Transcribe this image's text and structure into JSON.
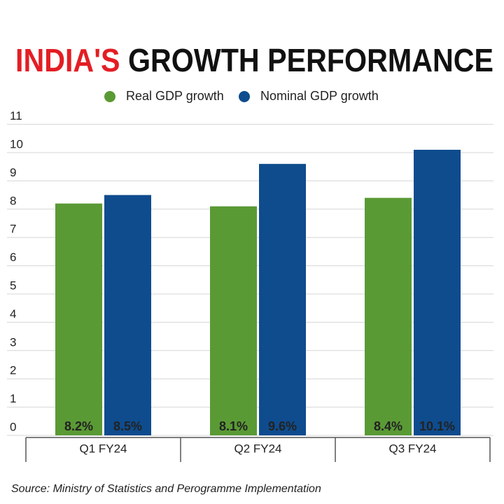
{
  "chart_data": {
    "type": "bar",
    "title": {
      "highlight": "INDIA'S",
      "rest": "GROWTH PERFORMANCE"
    },
    "title_highlight_color": "#e31e24",
    "categories": [
      "Q1 FY24",
      "Q2 FY24",
      "Q3 FY24"
    ],
    "series": [
      {
        "name": "Real GDP growth",
        "color": "#5a9a35",
        "values": [
          8.2,
          8.1,
          8.4
        ],
        "value_labels": [
          "8.2%",
          "8.1%",
          "8.4%"
        ]
      },
      {
        "name": "Nominal GDP growth",
        "color": "#0e4c8e",
        "values": [
          8.5,
          9.6,
          10.1
        ],
        "value_labels": [
          "8.5%",
          "9.6%",
          "10.1%"
        ]
      }
    ],
    "ylim": [
      0,
      11
    ],
    "yticks": [
      0,
      1,
      2,
      3,
      4,
      5,
      6,
      7,
      8,
      9,
      10,
      11
    ],
    "grid": true,
    "source": "Source: Ministry of Statistics and Perogramme Implementation"
  }
}
